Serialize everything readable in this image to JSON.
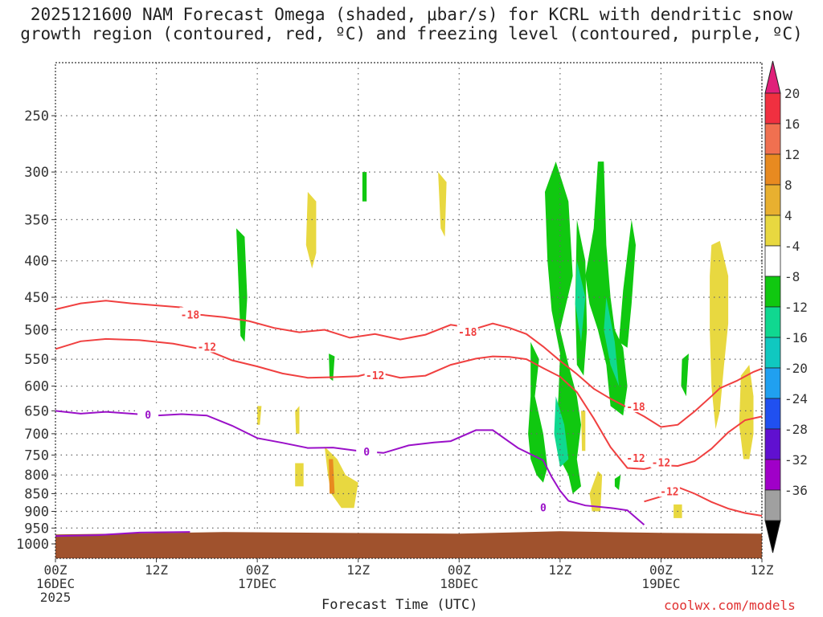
{
  "title_line1": "2025121600 NAM Forecast Omega (shaded, μbar/s) for KCRL with dendritic snow",
  "title_line2": "growth region (contoured, red, ºC) and freezing level (contoured, purple, ºC)",
  "credit": "coolwx.com/models",
  "chart_data": {
    "type": "heatmap",
    "title": "2025121600 NAM Forecast Omega (shaded, μbar/s) for KCRL with dendritic snow growth region (contoured, red, ºC) and freezing level (contoured, purple, ºC)",
    "xlabel": "Forecast Time (UTC)",
    "ylabel": "",
    "x_ticks": [
      {
        "hour": 0,
        "label": "00Z",
        "date": "16DEC",
        "year": "2025"
      },
      {
        "hour": 12,
        "label": "12Z",
        "date": "",
        "year": ""
      },
      {
        "hour": 24,
        "label": "00Z",
        "date": "17DEC",
        "year": ""
      },
      {
        "hour": 36,
        "label": "12Z",
        "date": "",
        "year": ""
      },
      {
        "hour": 48,
        "label": "00Z",
        "date": "18DEC",
        "year": ""
      },
      {
        "hour": 60,
        "label": "12Z",
        "date": "",
        "year": ""
      },
      {
        "hour": 72,
        "label": "00Z",
        "date": "19DEC",
        "year": ""
      },
      {
        "hour": 84,
        "label": "12Z",
        "date": "",
        "year": ""
      }
    ],
    "xlim": [
      0,
      84
    ],
    "y_ticks": [
      250,
      300,
      350,
      400,
      450,
      500,
      550,
      600,
      650,
      700,
      750,
      800,
      850,
      900,
      950,
      1000
    ],
    "ylim": [
      1030,
      200
    ],
    "y_scale": "log",
    "grid": true,
    "colorbar": {
      "labels": [
        20,
        16,
        12,
        8,
        4,
        -4,
        -8,
        -12,
        -16,
        -20,
        -24,
        -28,
        -32,
        -36
      ],
      "colors": [
        "#f03040",
        "#f07050",
        "#e88a20",
        "#e8b030",
        "#e8d840",
        "#ffffff",
        "#10c810",
        "#10d890",
        "#10c8c0",
        "#20a0f0",
        "#2050f0",
        "#6010d0",
        "#a000c8",
        "#a0a0a0"
      ],
      "top_arrow": "#e0207a",
      "bottom_arrow": "#000000"
    },
    "contours": [
      {
        "name": "-18",
        "color": "#f04040",
        "points": [
          [
            0,
            468
          ],
          [
            3,
            459
          ],
          [
            6,
            455
          ],
          [
            9,
            459
          ],
          [
            12,
            462
          ],
          [
            15,
            465
          ],
          [
            17,
            476
          ],
          [
            20,
            480
          ],
          [
            23,
            486
          ],
          [
            26,
            497
          ],
          [
            29,
            504
          ],
          [
            32,
            500
          ],
          [
            35,
            513
          ],
          [
            38,
            507
          ],
          [
            41,
            516
          ],
          [
            44,
            508
          ],
          [
            47,
            492
          ],
          [
            50,
            498
          ],
          [
            52,
            490
          ],
          [
            54,
            497
          ],
          [
            56,
            507
          ],
          [
            58,
            528
          ],
          [
            60,
            553
          ],
          [
            62,
            577
          ],
          [
            64,
            605
          ],
          [
            66,
            625
          ],
          [
            68,
            643
          ],
          [
            70,
            662
          ],
          [
            72,
            685
          ],
          [
            74,
            680
          ],
          [
            76,
            651
          ],
          [
            78,
            620
          ],
          [
            79,
            604
          ],
          [
            81,
            590
          ],
          [
            83,
            573
          ],
          [
            84,
            567
          ]
        ]
      },
      {
        "name": "-12",
        "color": "#f04040",
        "points": [
          [
            0,
            532
          ],
          [
            3,
            519
          ],
          [
            6,
            515
          ],
          [
            10,
            517
          ],
          [
            14,
            523
          ],
          [
            18,
            534
          ],
          [
            21,
            552
          ],
          [
            24,
            563
          ],
          [
            27,
            576
          ],
          [
            30,
            584
          ],
          [
            33,
            583
          ],
          [
            36,
            581
          ],
          [
            38,
            573
          ],
          [
            41,
            584
          ],
          [
            44,
            580
          ],
          [
            47,
            560
          ],
          [
            50,
            549
          ],
          [
            52,
            545
          ],
          [
            54,
            546
          ],
          [
            56,
            550
          ],
          [
            58,
            566
          ],
          [
            60,
            582
          ],
          [
            62,
            612
          ],
          [
            64,
            666
          ],
          [
            66,
            731
          ],
          [
            68,
            782
          ],
          [
            70,
            785
          ],
          [
            72,
            775
          ],
          [
            74,
            777
          ],
          [
            76,
            765
          ],
          [
            78,
            735
          ],
          [
            80,
            697
          ],
          [
            82,
            670
          ],
          [
            84,
            662
          ]
        ]
      },
      {
        "name": "-12",
        "color": "#f04040",
        "points": [
          [
            70,
            872
          ],
          [
            72,
            858
          ],
          [
            74,
            832
          ],
          [
            76,
            850
          ],
          [
            78,
            873
          ],
          [
            80,
            892
          ],
          [
            82,
            905
          ],
          [
            84,
            913
          ]
        ]
      },
      {
        "name": "0",
        "color": "#9a10c8",
        "points": [
          [
            0,
            650
          ],
          [
            3,
            656
          ],
          [
            6,
            652
          ],
          [
            9,
            656
          ],
          [
            12,
            660
          ],
          [
            15,
            657
          ],
          [
            18,
            660
          ],
          [
            21,
            682
          ],
          [
            24,
            710
          ],
          [
            27,
            721
          ],
          [
            30,
            733
          ],
          [
            33,
            732
          ],
          [
            36,
            740
          ],
          [
            39,
            745
          ],
          [
            42,
            727
          ],
          [
            45,
            720
          ],
          [
            47,
            717
          ],
          [
            50,
            692
          ],
          [
            52,
            692
          ],
          [
            55,
            733
          ],
          [
            58,
            763
          ],
          [
            59,
            805
          ],
          [
            60,
            842
          ],
          [
            61,
            870
          ],
          [
            63,
            883
          ],
          [
            66,
            890
          ],
          [
            68,
            897
          ],
          [
            70,
            940
          ]
        ]
      },
      {
        "name": "0",
        "color": "#9a10c8",
        "points": [
          [
            0,
            975
          ],
          [
            5,
            972
          ],
          [
            10,
            964
          ],
          [
            16,
            962
          ]
        ]
      }
    ],
    "terrain": {
      "surface_pressure": 965,
      "color": "#a0522d"
    }
  }
}
